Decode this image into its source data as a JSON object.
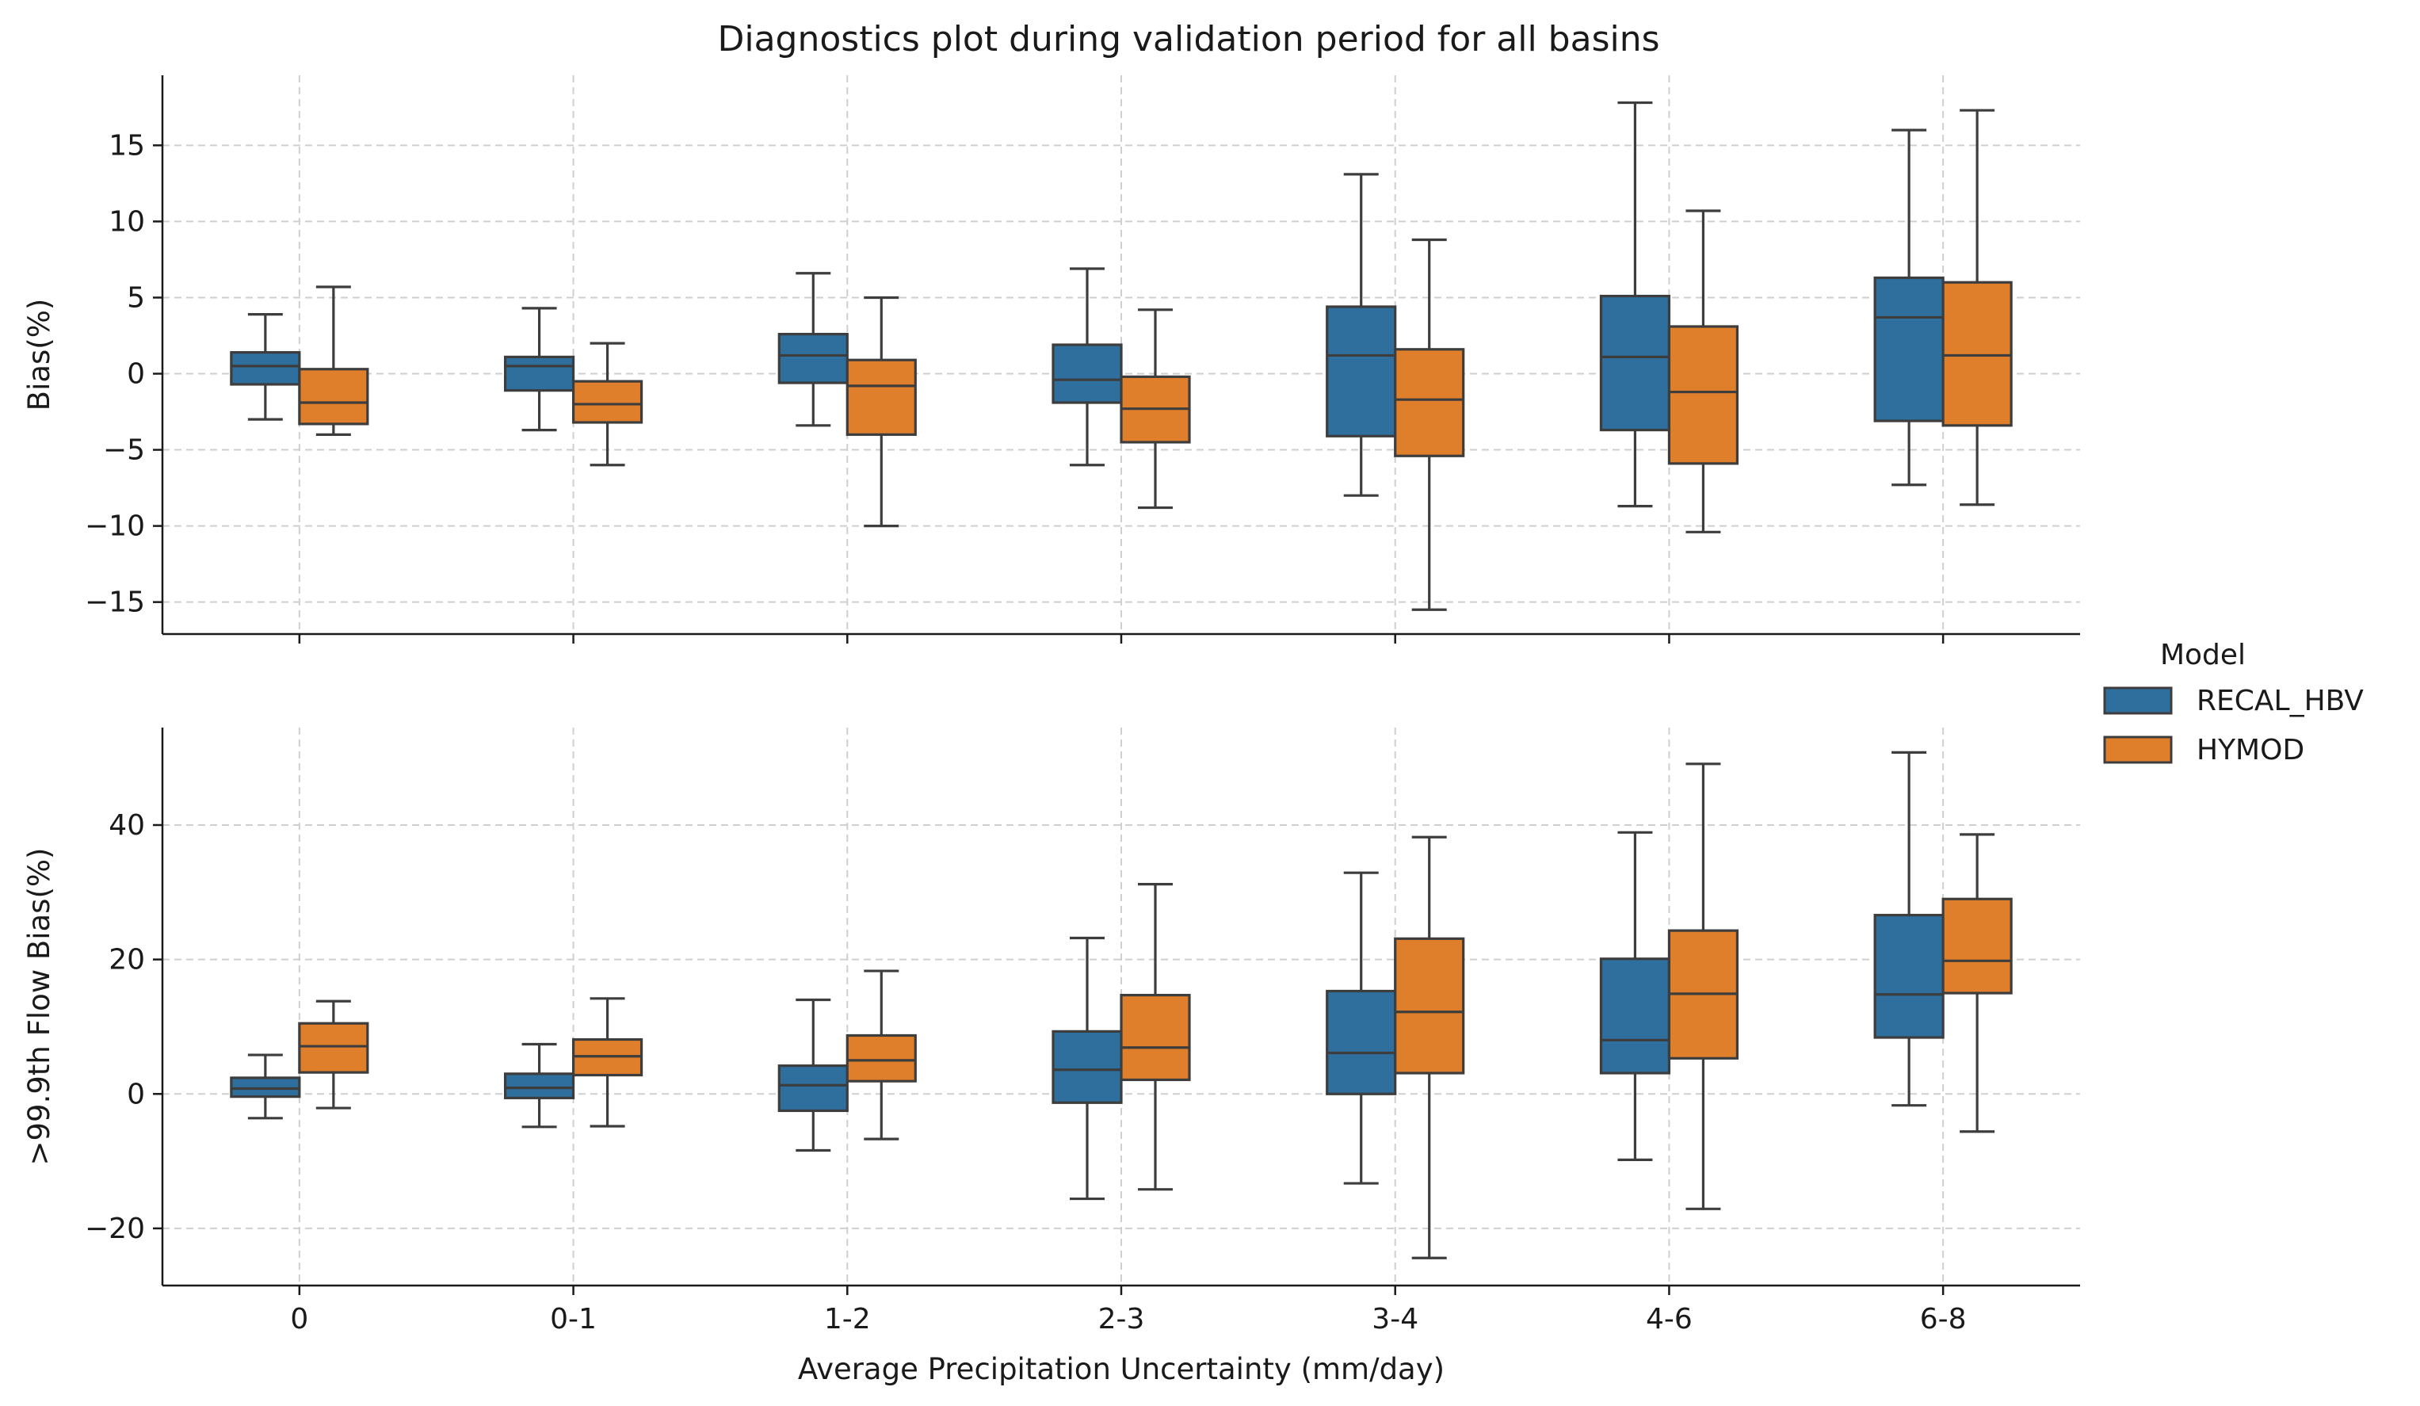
{
  "chart_data": {
    "type": "box",
    "title": "Diagnostics plot during validation period for all basins",
    "xlabel": "Average Precipitation Uncertainty (mm/day)",
    "categories": [
      "0",
      "0-1",
      "1-2",
      "2-3",
      "3-4",
      "4-6",
      "6-8"
    ],
    "legend": {
      "title": "Model",
      "placement": "right",
      "entries": [
        {
          "name": "RECAL_HBV",
          "color": "#2e6f9e"
        },
        {
          "name": "HYMOD",
          "color": "#e07f2b"
        }
      ]
    },
    "grid": true,
    "panels": [
      {
        "ylabel": "Bias(%)",
        "ylim": [
          -17.1,
          19.6
        ],
        "yticks": [
          -15,
          -10,
          -5,
          0,
          5,
          10,
          15
        ],
        "ytick_labels": [
          "−15",
          "−10",
          "−5",
          "0",
          "5",
          "10",
          "15"
        ],
        "series": [
          {
            "name": "RECAL_HBV",
            "boxes": [
              {
                "whislo": -3.0,
                "q1": -0.7,
                "med": 0.5,
                "q3": 1.4,
                "whishi": 3.9
              },
              {
                "whislo": -3.7,
                "q1": -1.1,
                "med": 0.5,
                "q3": 1.1,
                "whishi": 4.3
              },
              {
                "whislo": -3.4,
                "q1": -0.6,
                "med": 1.2,
                "q3": 2.6,
                "whishi": 6.6
              },
              {
                "whislo": -6.0,
                "q1": -1.9,
                "med": -0.4,
                "q3": 1.9,
                "whishi": 6.9
              },
              {
                "whislo": -8.0,
                "q1": -4.1,
                "med": 1.2,
                "q3": 4.4,
                "whishi": 13.1
              },
              {
                "whislo": -8.7,
                "q1": -3.7,
                "med": 1.1,
                "q3": 5.1,
                "whishi": 17.8
              },
              {
                "whislo": -7.3,
                "q1": -3.1,
                "med": 3.7,
                "q3": 6.3,
                "whishi": 16.0
              }
            ]
          },
          {
            "name": "HYMOD",
            "boxes": [
              {
                "whislo": -4.0,
                "q1": -3.3,
                "med": -1.9,
                "q3": 0.3,
                "whishi": 5.7
              },
              {
                "whislo": -6.0,
                "q1": -3.2,
                "med": -2.0,
                "q3": -0.5,
                "whishi": 2.0
              },
              {
                "whislo": -10.0,
                "q1": -4.0,
                "med": -0.8,
                "q3": 0.9,
                "whishi": 5.0
              },
              {
                "whislo": -8.8,
                "q1": -4.5,
                "med": -2.3,
                "q3": -0.2,
                "whishi": 4.2
              },
              {
                "whislo": -15.5,
                "q1": -5.4,
                "med": -1.7,
                "q3": 1.6,
                "whishi": 8.8
              },
              {
                "whislo": -10.4,
                "q1": -5.9,
                "med": -1.2,
                "q3": 3.1,
                "whishi": 10.7
              },
              {
                "whislo": -8.6,
                "q1": -3.4,
                "med": 1.2,
                "q3": 6.0,
                "whishi": 17.3
              }
            ]
          }
        ]
      },
      {
        "ylabel": ">99.9th Flow Bias(%)",
        "ylim": [
          -28.5,
          54.5
        ],
        "yticks": [
          -20,
          0,
          20,
          40
        ],
        "ytick_labels": [
          "−20",
          "0",
          "20",
          "40"
        ],
        "series": [
          {
            "name": "RECAL_HBV",
            "boxes": [
              {
                "whislo": -3.6,
                "q1": -0.4,
                "med": 0.8,
                "q3": 2.4,
                "whishi": 5.8
              },
              {
                "whislo": -4.9,
                "q1": -0.6,
                "med": 0.9,
                "q3": 3.0,
                "whishi": 7.4
              },
              {
                "whislo": -8.4,
                "q1": -2.5,
                "med": 1.3,
                "q3": 4.2,
                "whishi": 14.0
              },
              {
                "whislo": -15.6,
                "q1": -1.3,
                "med": 3.6,
                "q3": 9.3,
                "whishi": 23.2
              },
              {
                "whislo": -13.3,
                "q1": 0.0,
                "med": 6.1,
                "q3": 15.3,
                "whishi": 32.9
              },
              {
                "whislo": -9.8,
                "q1": 3.1,
                "med": 8.0,
                "q3": 20.1,
                "whishi": 38.9
              },
              {
                "whislo": -1.7,
                "q1": 8.4,
                "med": 14.8,
                "q3": 26.6,
                "whishi": 50.8
              }
            ]
          },
          {
            "name": "HYMOD",
            "boxes": [
              {
                "whislo": -2.1,
                "q1": 3.2,
                "med": 7.1,
                "q3": 10.5,
                "whishi": 13.8
              },
              {
                "whislo": -4.8,
                "q1": 2.8,
                "med": 5.6,
                "q3": 8.1,
                "whishi": 14.2
              },
              {
                "whislo": -6.7,
                "q1": 1.9,
                "med": 5.0,
                "q3": 8.7,
                "whishi": 18.3
              },
              {
                "whislo": -14.2,
                "q1": 2.1,
                "med": 6.9,
                "q3": 14.7,
                "whishi": 31.2
              },
              {
                "whislo": -24.4,
                "q1": 3.1,
                "med": 12.2,
                "q3": 23.1,
                "whishi": 38.2
              },
              {
                "whislo": -17.1,
                "q1": 5.3,
                "med": 14.9,
                "q3": 24.3,
                "whishi": 49.1
              },
              {
                "whislo": -5.6,
                "q1": 15.0,
                "med": 19.8,
                "q3": 29.0,
                "whishi": 38.6
              }
            ]
          }
        ]
      }
    ]
  }
}
